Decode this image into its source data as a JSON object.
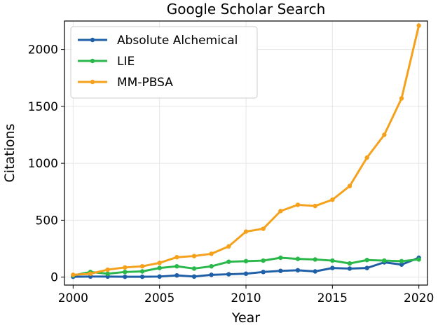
{
  "chart_data": {
    "type": "line",
    "title": "Google Scholar Search",
    "xlabel": "Year",
    "ylabel": "Citations",
    "x": [
      2000,
      2001,
      2002,
      2003,
      2004,
      2005,
      2006,
      2007,
      2008,
      2009,
      2010,
      2011,
      2012,
      2013,
      2014,
      2015,
      2016,
      2017,
      2018,
      2019,
      2020
    ],
    "xlim": [
      1999.5,
      2020.5
    ],
    "ylim": [
      -70,
      2250
    ],
    "xticks": [
      2000,
      2005,
      2010,
      2015,
      2020
    ],
    "yticks": [
      0,
      500,
      1000,
      1500,
      2000
    ],
    "grid": true,
    "legend_position": "top-left",
    "series": [
      {
        "name": "Absolute Alchemical",
        "color": "#1f5fa8",
        "values": [
          3,
          5,
          5,
          3,
          3,
          5,
          15,
          5,
          20,
          25,
          30,
          45,
          55,
          60,
          50,
          80,
          75,
          80,
          130,
          110,
          170
        ]
      },
      {
        "name": "LIE",
        "color": "#2ab84a",
        "values": [
          15,
          45,
          30,
          45,
          50,
          80,
          95,
          75,
          95,
          135,
          140,
          145,
          170,
          160,
          155,
          145,
          120,
          150,
          145,
          140,
          155
        ]
      },
      {
        "name": "MM-PBSA",
        "color": "#f5a11c",
        "values": [
          20,
          30,
          65,
          85,
          95,
          125,
          175,
          185,
          205,
          270,
          400,
          425,
          580,
          635,
          625,
          680,
          800,
          1050,
          1250,
          1570,
          2210
        ]
      }
    ]
  }
}
